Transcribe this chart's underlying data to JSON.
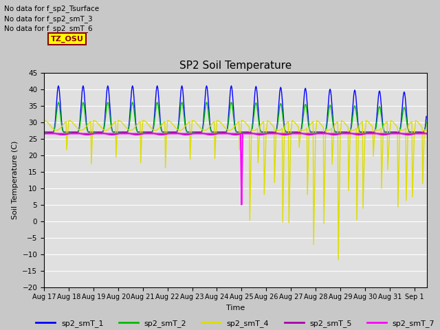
{
  "title": "SP2 Soil Temperature",
  "ylabel": "Soil Temperature (C)",
  "xlabel": "Time",
  "ylim": [
    -20,
    45
  ],
  "yticks": [
    -20,
    -15,
    -10,
    -5,
    0,
    5,
    10,
    15,
    20,
    25,
    30,
    35,
    40,
    45
  ],
  "colors": {
    "sp2_smT_1": "#0000ff",
    "sp2_smT_2": "#00bb00",
    "sp2_smT_4": "#dddd00",
    "sp2_smT_5": "#aa00aa",
    "sp2_smT_7": "#ff00ff"
  },
  "background_color": "#c8c8c8",
  "plot_bg_color": "#e0e0e0",
  "no_data_lines": [
    "No data for f_sp2_Tsurface",
    "No data for f_sp2_smT_3",
    "No data for f_sp2_smT_6"
  ],
  "tz_label": "TZ_OSU"
}
